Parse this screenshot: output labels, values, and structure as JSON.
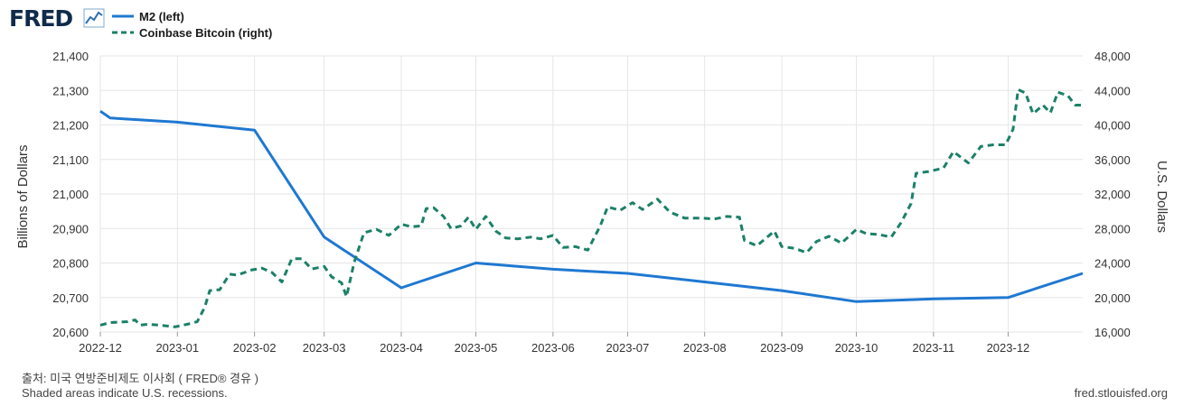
{
  "header": {
    "logo_text": "FRED",
    "logo_icon": "chart-line-icon"
  },
  "footer": {
    "source": "출처: 미국 연방준비제도 이사회 ( FRED® 경유 )",
    "note": "Shaded areas indicate U.S. recessions.",
    "site": "fred.stlouisfed.org"
  },
  "colors": {
    "m2": "#1f78d1",
    "btc": "#1b8068",
    "plot_bg": "#ffffff",
    "grid": "#e6e6e6",
    "page_bg": "#ffffff"
  },
  "chart_data": {
    "type": "line",
    "xlabel": "",
    "x_ticks": [
      "2022-12",
      "2023-01",
      "2023-02",
      "2023-03",
      "2023-04",
      "2023-05",
      "2023-06",
      "2023-07",
      "2023-08",
      "2023-09",
      "2023-10",
      "2023-11",
      "2023-12"
    ],
    "x_range": [
      "2022-12-01",
      "2023-12-31"
    ],
    "y_left": {
      "label": "Billions of Dollars",
      "range": [
        20600,
        21400
      ],
      "ticks": [
        "20,600",
        "20,700",
        "20,800",
        "20,900",
        "21,000",
        "21,100",
        "21,200",
        "21,300",
        "21,400"
      ]
    },
    "y_right": {
      "label": "U.S. Dollars",
      "range": [
        16000,
        48000
      ],
      "ticks": [
        "16,000",
        "20,000",
        "24,000",
        "28,000",
        "32,000",
        "36,000",
        "40,000",
        "44,000",
        "48,000"
      ]
    },
    "grid": true,
    "legend_position": "top-left",
    "series": [
      {
        "name": "M2 (left)",
        "axis": "left",
        "style": "solid",
        "points": [
          [
            "2022-12-01",
            21240
          ],
          [
            "2022-12-05",
            21220
          ],
          [
            "2023-01-01",
            21208
          ],
          [
            "2023-02-01",
            21185
          ],
          [
            "2023-03-01",
            20875
          ],
          [
            "2023-04-01",
            20728
          ],
          [
            "2023-05-01",
            20800
          ],
          [
            "2023-06-01",
            20782
          ],
          [
            "2023-07-01",
            20770
          ],
          [
            "2023-08-01",
            20745
          ],
          [
            "2023-09-01",
            20720
          ],
          [
            "2023-10-01",
            20688
          ],
          [
            "2023-11-01",
            20696
          ],
          [
            "2023-12-01",
            20700
          ],
          [
            "2023-12-31",
            20770
          ]
        ]
      },
      {
        "name": "Coinbase Bitcoin (right)",
        "axis": "right",
        "style": "dashed",
        "points": [
          [
            "2022-12-01",
            16800
          ],
          [
            "2022-12-05",
            17100
          ],
          [
            "2022-12-12",
            17200
          ],
          [
            "2022-12-15",
            17400
          ],
          [
            "2022-12-17",
            16800
          ],
          [
            "2022-12-20",
            16900
          ],
          [
            "2022-12-25",
            16800
          ],
          [
            "2022-12-31",
            16600
          ],
          [
            "2023-01-05",
            16900
          ],
          [
            "2023-01-09",
            17200
          ],
          [
            "2023-01-12",
            18900
          ],
          [
            "2023-01-14",
            20800
          ],
          [
            "2023-01-18",
            20900
          ],
          [
            "2023-01-22",
            22700
          ],
          [
            "2023-01-25",
            22600
          ],
          [
            "2023-01-31",
            23200
          ],
          [
            "2023-02-04",
            23400
          ],
          [
            "2023-02-08",
            22900
          ],
          [
            "2023-02-12",
            21800
          ],
          [
            "2023-02-16",
            24500
          ],
          [
            "2023-02-20",
            24500
          ],
          [
            "2023-02-24",
            23300
          ],
          [
            "2023-03-01",
            23600
          ],
          [
            "2023-03-04",
            22400
          ],
          [
            "2023-03-08",
            21700
          ],
          [
            "2023-03-10",
            20100
          ],
          [
            "2023-03-13",
            24000
          ],
          [
            "2023-03-17",
            27500
          ],
          [
            "2023-03-22",
            27900
          ],
          [
            "2023-03-27",
            27200
          ],
          [
            "2023-04-01",
            28500
          ],
          [
            "2023-04-05",
            28200
          ],
          [
            "2023-04-09",
            28300
          ],
          [
            "2023-04-11",
            30300
          ],
          [
            "2023-04-14",
            30400
          ],
          [
            "2023-04-18",
            29400
          ],
          [
            "2023-04-21",
            28000
          ],
          [
            "2023-04-25",
            28300
          ],
          [
            "2023-04-28",
            29300
          ],
          [
            "2023-05-01",
            27900
          ],
          [
            "2023-05-05",
            29400
          ],
          [
            "2023-05-09",
            27700
          ],
          [
            "2023-05-13",
            26900
          ],
          [
            "2023-05-18",
            26800
          ],
          [
            "2023-05-23",
            27000
          ],
          [
            "2023-05-27",
            26800
          ],
          [
            "2023-06-01",
            27200
          ],
          [
            "2023-06-05",
            25800
          ],
          [
            "2023-06-10",
            25900
          ],
          [
            "2023-06-15",
            25500
          ],
          [
            "2023-06-20",
            28300
          ],
          [
            "2023-06-23",
            30500
          ],
          [
            "2023-06-28",
            30100
          ],
          [
            "2023-07-03",
            31000
          ],
          [
            "2023-07-07",
            30200
          ],
          [
            "2023-07-13",
            31400
          ],
          [
            "2023-07-18",
            29900
          ],
          [
            "2023-07-24",
            29200
          ],
          [
            "2023-07-31",
            29200
          ],
          [
            "2023-08-05",
            29100
          ],
          [
            "2023-08-10",
            29400
          ],
          [
            "2023-08-15",
            29300
          ],
          [
            "2023-08-17",
            26600
          ],
          [
            "2023-08-22",
            26000
          ],
          [
            "2023-08-29",
            27700
          ],
          [
            "2023-09-01",
            25900
          ],
          [
            "2023-09-06",
            25700
          ],
          [
            "2023-09-11",
            25200
          ],
          [
            "2023-09-15",
            26500
          ],
          [
            "2023-09-20",
            27100
          ],
          [
            "2023-09-25",
            26300
          ],
          [
            "2023-10-01",
            27900
          ],
          [
            "2023-10-05",
            27400
          ],
          [
            "2023-10-10",
            27300
          ],
          [
            "2023-10-15",
            27000
          ],
          [
            "2023-10-19",
            28700
          ],
          [
            "2023-10-23",
            30900
          ],
          [
            "2023-10-25",
            34400
          ],
          [
            "2023-10-30",
            34600
          ],
          [
            "2023-11-05",
            35000
          ],
          [
            "2023-11-09",
            36900
          ],
          [
            "2023-11-15",
            35600
          ],
          [
            "2023-11-20",
            37500
          ],
          [
            "2023-11-25",
            37700
          ],
          [
            "2023-11-30",
            37700
          ],
          [
            "2023-12-03",
            39500
          ],
          [
            "2023-12-05",
            44100
          ],
          [
            "2023-12-08",
            43700
          ],
          [
            "2023-12-11",
            41300
          ],
          [
            "2023-12-15",
            42300
          ],
          [
            "2023-12-18",
            41400
          ],
          [
            "2023-12-21",
            43800
          ],
          [
            "2023-12-25",
            43400
          ],
          [
            "2023-12-28",
            42300
          ],
          [
            "2023-12-31",
            42300
          ]
        ]
      }
    ]
  }
}
